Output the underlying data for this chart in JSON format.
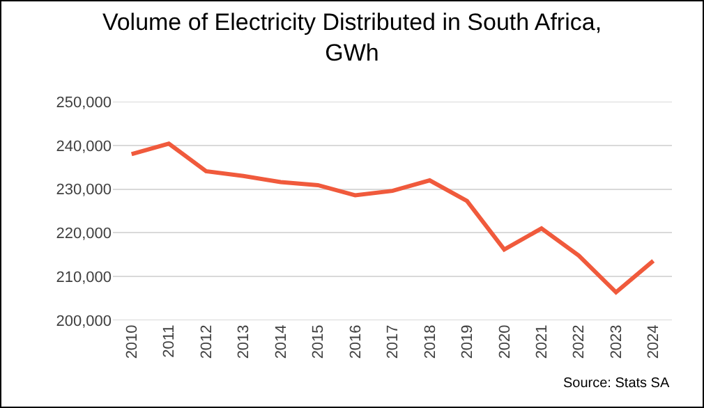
{
  "chart_data": {
    "type": "line",
    "title": "Volume of Electricity Distributed in South Africa, GWh",
    "categories": [
      "2010",
      "2011",
      "2012",
      "2013",
      "2014",
      "2015",
      "2016",
      "2017",
      "2018",
      "2019",
      "2020",
      "2021",
      "2022",
      "2023",
      "2024"
    ],
    "series": [
      {
        "color": "#f05a3c",
        "values": [
          238000,
          240400,
          234100,
          233000,
          231600,
          230900,
          228600,
          229600,
          232000,
          227300,
          216200,
          221000,
          214800,
          206400,
          213600
        ]
      }
    ],
    "ylim": [
      200000,
      250000
    ],
    "yticks": [
      {
        "value": 200000,
        "label": "200,000"
      },
      {
        "value": 210000,
        "label": "210,000"
      },
      {
        "value": 220000,
        "label": "220,000"
      },
      {
        "value": 230000,
        "label": "230,000"
      },
      {
        "value": 240000,
        "label": "240,000"
      },
      {
        "value": 250000,
        "label": "250,000"
      }
    ],
    "grid": "y",
    "marker": "none",
    "line_style": "solid",
    "annotations": [
      "Source: Stats SA"
    ]
  }
}
